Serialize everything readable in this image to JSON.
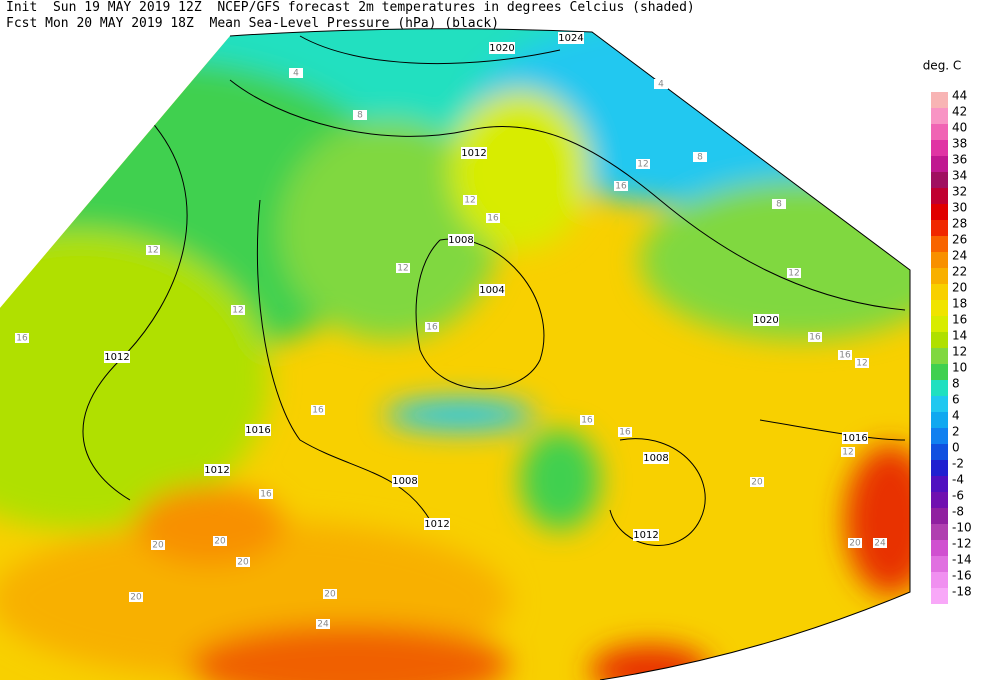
{
  "header": {
    "line1": "Init  Sun 19 MAY 2019 12Z  NCEP/GFS forecast 2m temperatures in degrees Celcius (shaded)",
    "line2": "Fcst Mon 20 MAY 2019 18Z  Mean Sea-Level Pressure (hPa) (black)"
  },
  "legend": {
    "unit": "deg. C",
    "entries": [
      {
        "label": "44",
        "color": "#f8b4b4"
      },
      {
        "label": "42",
        "color": "#f894c4"
      },
      {
        "label": "40",
        "color": "#f064b4"
      },
      {
        "label": "38",
        "color": "#e034a4"
      },
      {
        "label": "36",
        "color": "#c01890"
      },
      {
        "label": "34",
        "color": "#a01060"
      },
      {
        "label": "32",
        "color": "#c00030"
      },
      {
        "label": "30",
        "color": "#e00000"
      },
      {
        "label": "28",
        "color": "#f02800"
      },
      {
        "label": "26",
        "color": "#f86400"
      },
      {
        "label": "24",
        "color": "#f89000"
      },
      {
        "label": "22",
        "color": "#f8b000"
      },
      {
        "label": "20",
        "color": "#f8d000"
      },
      {
        "label": "18",
        "color": "#f0e400"
      },
      {
        "label": "16",
        "color": "#d8ec00"
      },
      {
        "label": "14",
        "color": "#b0e000"
      },
      {
        "label": "12",
        "color": "#80d840"
      },
      {
        "label": "10",
        "color": "#40d050"
      },
      {
        "label": "8",
        "color": "#20e0c0"
      },
      {
        "label": "6",
        "color": "#20c8f0"
      },
      {
        "label": "4",
        "color": "#10a8f0"
      },
      {
        "label": "2",
        "color": "#1080f0"
      },
      {
        "label": "0",
        "color": "#1050e0"
      },
      {
        "label": "-2",
        "color": "#2020d0"
      },
      {
        "label": "-4",
        "color": "#5010c0"
      },
      {
        "label": "-6",
        "color": "#7010b0"
      },
      {
        "label": "-8",
        "color": "#9020a0"
      },
      {
        "label": "-10",
        "color": "#b040b0"
      },
      {
        "label": "-12",
        "color": "#d050d0"
      },
      {
        "label": "-14",
        "color": "#e070e0"
      },
      {
        "label": "-16",
        "color": "#f090f0"
      },
      {
        "label": "-18",
        "color": "#f8a8f8"
      }
    ]
  },
  "map": {
    "isobar_labels": [
      "1024",
      "1020",
      "1012",
      "1008",
      "1004",
      "1020",
      "1012",
      "1016",
      "1016",
      "1008",
      "1012",
      "1008",
      "1012",
      "1012"
    ],
    "temperature_labels": [
      "4",
      "8",
      "4",
      "8",
      "12",
      "16",
      "8",
      "12",
      "12",
      "12",
      "16",
      "16",
      "16",
      "16",
      "12",
      "16",
      "16",
      "16",
      "12",
      "20",
      "16",
      "20",
      "20",
      "20",
      "20",
      "24",
      "20",
      "24",
      "20",
      "12",
      "12",
      "16"
    ]
  }
}
